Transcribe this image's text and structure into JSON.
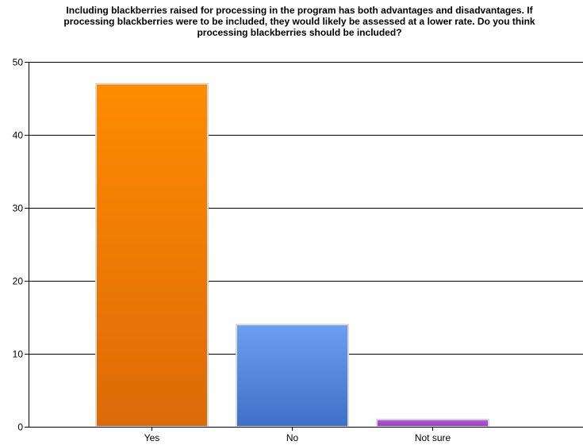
{
  "chart_data": {
    "type": "bar",
    "title_lines": [
      "Including blackberries raised for processing in the program has both advantages and disadvantages. If",
      "processing blackberries were to be included, they would likely be assessed at a lower rate. Do you think",
      "processing blackberries should be included?"
    ],
    "xlabel": "",
    "ylabel": "",
    "categories": [
      "Yes",
      "No",
      "Not sure"
    ],
    "values": [
      47,
      14,
      1
    ],
    "ylim": [
      0,
      50
    ],
    "yticks": [
      0,
      10,
      20,
      30,
      40,
      50
    ],
    "grid": true,
    "legend": "none",
    "colors": {
      "Yes": {
        "top": "#ff8c00",
        "bottom": "#dc6a08"
      },
      "No": {
        "top": "#6b9ff0",
        "bottom": "#3f70c8"
      },
      "Not sure": {
        "top": "#b35bd8",
        "bottom": "#9a3cc4"
      },
      "bar_border": "#d9d9d9",
      "grid": "#000000",
      "axis": "#000000"
    }
  }
}
